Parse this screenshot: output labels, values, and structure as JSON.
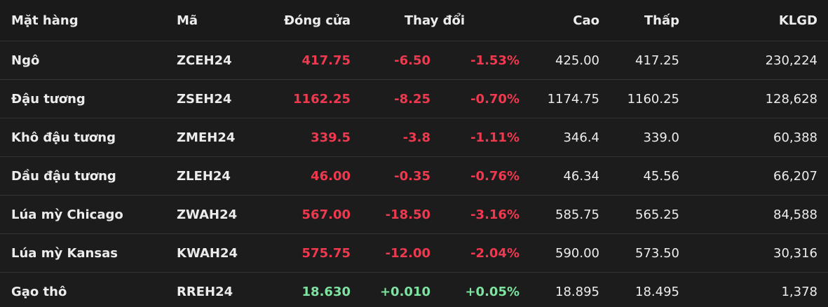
{
  "table": {
    "header": [
      "Mặt hàng",
      "Mã",
      "Đóng cửa",
      "Thay đổi",
      "Cao",
      "Thấp",
      "KLGD"
    ],
    "rows": [
      {
        "cells": [
          "Ngô",
          "ZCEH24",
          "417.75",
          "-6.50",
          "-1.53%",
          "425.00",
          "417.25",
          "230,224"
        ],
        "color": "#f0394f"
      },
      {
        "cells": [
          "Đậu tương",
          "ZSEH24",
          "1162.25",
          "-8.25",
          "-0.70%",
          "1174.75",
          "1160.25",
          "128,628"
        ],
        "color": "#f0394f"
      },
      {
        "cells": [
          "Khô đậu tương",
          "ZMEH24",
          "339.5",
          "-3.8",
          "-1.11%",
          "346.4",
          "339.0",
          "60,388"
        ],
        "color": "#f0394f"
      },
      {
        "cells": [
          "Dầu đậu tương",
          "ZLEH24",
          "46.00",
          "-0.35",
          "-0.76%",
          "46.34",
          "45.56",
          "66,207"
        ],
        "color": "#f0394f"
      },
      {
        "cells": [
          "Lúa mỳ Chicago",
          "ZWAH24",
          "567.00",
          "-18.50",
          "-3.16%",
          "585.75",
          "565.25",
          "84,588"
        ],
        "color": "#f0394f"
      },
      {
        "cells": [
          "Lúa mỳ Kansas",
          "KWAH24",
          "575.75",
          "-12.00",
          "-2.04%",
          "590.00",
          "573.50",
          "30,316"
        ],
        "color": "#f0394f"
      },
      {
        "cells": [
          "Gạo thô",
          "RREH24",
          "18.630",
          "+0.010",
          "+0.05%",
          "18.895",
          "18.495",
          "1,378"
        ],
        "color": "#7ee2a0"
      }
    ]
  }
}
